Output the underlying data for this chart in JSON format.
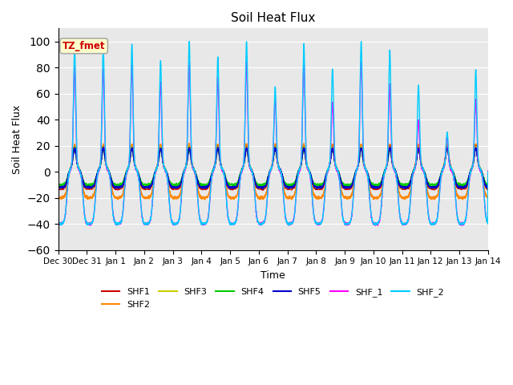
{
  "title": "Soil Heat Flux",
  "xlabel": "Time",
  "ylabel": "Soil Heat Flux",
  "ylim": [
    -60,
    110
  ],
  "yticks": [
    -60,
    -40,
    -20,
    0,
    20,
    40,
    60,
    80,
    100
  ],
  "num_days": 15,
  "colors": {
    "SHF1": "#cc0000",
    "SHF2": "#ff8800",
    "SHF3": "#cccc00",
    "SHF4": "#00cc00",
    "SHF5": "#0000cc",
    "SHF_1": "#ff00ff",
    "SHF_2": "#00ccff"
  },
  "annotation_text": "TZ_fmet",
  "annotation_bg": "#ffffcc",
  "annotation_border": "#aaaaaa",
  "annotation_textcolor": "#cc0000",
  "bg_color": "#e8e8e8",
  "xtick_labels": [
    "Dec 30",
    "Dec 31",
    "Jan 1",
    "Jan 2",
    "Jan 3",
    "Jan 4",
    "Jan 5",
    "Jan 6",
    "Jan 7",
    "Jan 8",
    "Jan 9",
    "Jan 10",
    "Jan 11",
    "Jan 12",
    "Jan 13",
    "Jan 14"
  ],
  "linewidth": 1.0,
  "day_peaks_cyan": [
    90,
    90,
    93,
    80,
    95,
    83,
    95,
    60,
    93,
    74,
    95,
    88,
    61,
    25,
    73
  ],
  "day_troughs_cyan": [
    -40,
    -25,
    -42,
    -38,
    -42,
    -42,
    -42,
    -42,
    -43,
    -40,
    -40,
    -38,
    -40,
    -42,
    -43
  ],
  "day_peaks_mag": [
    76,
    75,
    78,
    65,
    80,
    68,
    80,
    52,
    78,
    49,
    80,
    62,
    35,
    22,
    51
  ],
  "day_troughs_mag": [
    -42,
    -28,
    -43,
    -38,
    -42,
    -42,
    -42,
    -42,
    -43,
    -41,
    -40,
    -39,
    -41,
    -41,
    -43
  ]
}
